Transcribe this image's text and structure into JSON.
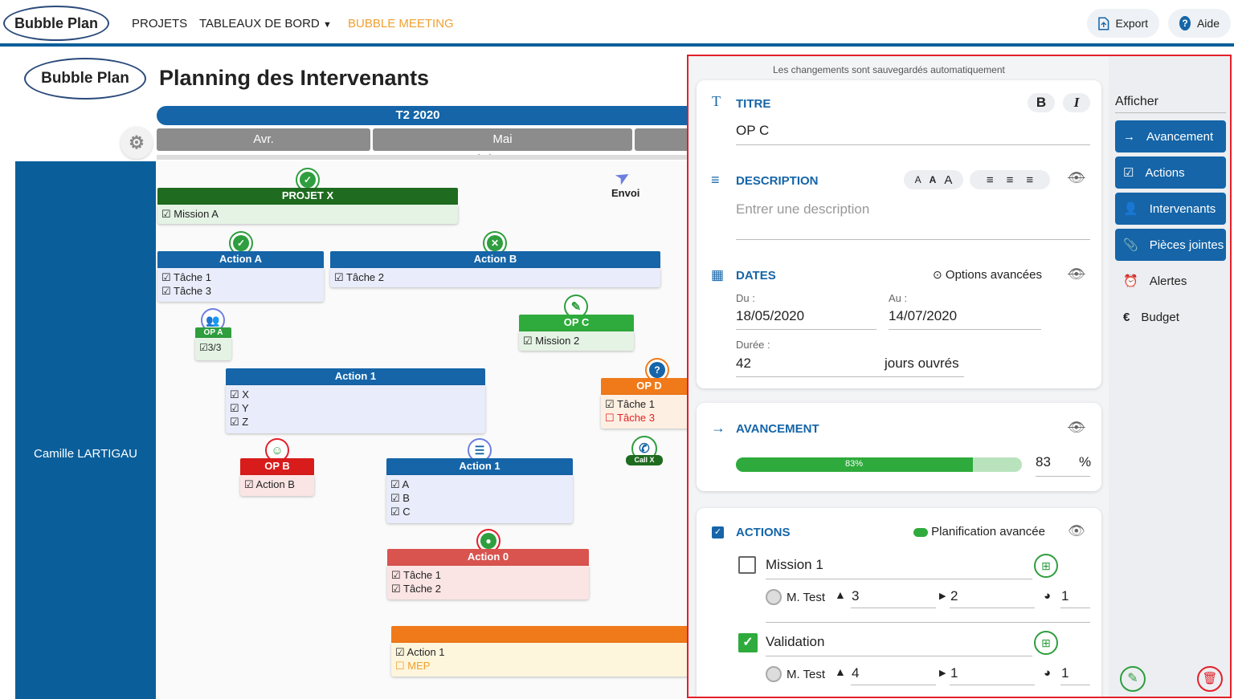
{
  "nav": {
    "logo": "Bubble Plan",
    "links": [
      "PROJETS",
      "TABLEAUX DE BORD",
      "BUBBLE MEETING"
    ],
    "export": "Export",
    "help": "Aide",
    "active_color": "#f0a030"
  },
  "planning": {
    "logo": "Bubble Plan",
    "title": "Planning des Intervenants",
    "quarter": "T2 2020",
    "months": [
      "Avr.",
      "Mai"
    ],
    "person": "Camille LARTIGAU",
    "envoi": "Envoi",
    "cards": {
      "projetx": {
        "title": "PROJET X",
        "items": [
          "☑ Mission A"
        ]
      },
      "actiona": {
        "title": "Action A",
        "items": [
          "☑ Tâche 1",
          "☑ Tâche 3"
        ]
      },
      "actionb": {
        "title": "Action B",
        "items": [
          "☑ Tâche 2"
        ]
      },
      "opa": {
        "title": "OP A",
        "count": "☑3/3"
      },
      "opc": {
        "title": "OP C",
        "items": [
          "☑ Mission 2"
        ]
      },
      "opd": {
        "title": "OP D",
        "items": [
          "☑ Tâche 1",
          "☐ Tâche 3"
        ]
      },
      "action1a": {
        "title": "Action 1",
        "items": [
          "☑ X",
          "☑ Y",
          "☑ Z"
        ]
      },
      "callx": {
        "title": "Call X"
      },
      "opb": {
        "title": "OP B",
        "items": [
          "☑ Action B"
        ]
      },
      "action1b": {
        "title": "Action 1",
        "items": [
          "☑ A",
          "☑ B",
          "☑ C"
        ]
      },
      "action0": {
        "title": "Action 0",
        "items": [
          "☑ Tâche 1",
          "☑ Tâche 2"
        ]
      },
      "bottom": {
        "items": [
          "☑ Action 1",
          "☐ MEP"
        ]
      }
    }
  },
  "panel": {
    "autosave": "Les changements sont sauvegardés automatiquement",
    "titre": {
      "label": "TITRE",
      "value": "OP C"
    },
    "description": {
      "label": "DESCRIPTION",
      "placeholder": "Entrer une description"
    },
    "dates": {
      "label": "DATES",
      "options": "Options avancées",
      "from_label": "Du :",
      "from": "18/05/2020",
      "to_label": "Au :",
      "to": "14/07/2020",
      "duration_label": "Durée :",
      "duration": "42",
      "unit": "jours ouvrés"
    },
    "progress": {
      "label": "AVANCEMENT",
      "percent": 83,
      "bar_text": "83%",
      "value": "83",
      "unit": "%"
    },
    "actions": {
      "label": "ACTIONS",
      "advanced": "Planification avancée",
      "items": [
        {
          "name": "Mission 1",
          "checked": false,
          "user": "M. Test",
          "weight": "3",
          "step": "2",
          "pie": "1"
        },
        {
          "name": "Validation",
          "checked": true,
          "user": "M. Test",
          "weight": "4",
          "step": "1",
          "pie": "1"
        }
      ]
    },
    "side": {
      "heading": "Afficher",
      "buttons": [
        "Avancement",
        "Actions",
        "Intervenants",
        "Pièces jointes"
      ],
      "plain": [
        "Alertes",
        "Budget"
      ]
    }
  }
}
